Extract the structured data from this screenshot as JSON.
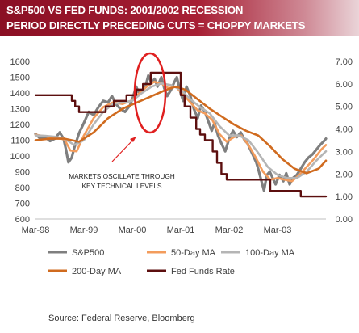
{
  "header": {
    "line1": "S&P500 VS FED FUNDS: 2001/2002 RECESSION",
    "line2": "PERIOD DIRECTLY PRECEDING CUTS = CHOPPY MARKETS"
  },
  "source": "Source:  Federal Reserve, Bloomberg",
  "annotation": {
    "line1": "MARKETS OSCILLATE THROUGH",
    "line2": "KEY TECHNICAL LEVELS"
  },
  "colors": {
    "header_start": "#8a0f24",
    "sp500": "#7f7f7f",
    "ma50": "#f39c5c",
    "ma100": "#b5b5b5",
    "ma200": "#d06b1f",
    "fed_funds": "#5c0f0f",
    "highlight": "#e02020"
  },
  "chart_data": {
    "type": "line",
    "title": "",
    "xlabel": "",
    "ylabel": "",
    "x_ticks": [
      "Mar-98",
      "Mar-99",
      "Mar-00",
      "Mar-01",
      "Mar-02",
      "Mar-03"
    ],
    "x_range": [
      1998.0,
      2004.0
    ],
    "y_left_ticks": [
      "600",
      "700",
      "800",
      "900",
      "1000",
      "1100",
      "1200",
      "1300",
      "1400",
      "1500",
      "1600"
    ],
    "y_left_range": [
      600,
      1600
    ],
    "y_right_ticks": [
      "0.00",
      "1.00",
      "2.00",
      "3.00",
      "4.00",
      "5.00",
      "6.00",
      "7.00"
    ],
    "y_right_range": [
      0,
      7
    ],
    "grid": false,
    "legend_position": "bottom",
    "series": [
      {
        "name": "S&P500",
        "axis": "left",
        "x": [
          1998.0,
          1998.1,
          1998.2,
          1998.3,
          1998.4,
          1998.5,
          1998.58,
          1998.63,
          1998.68,
          1998.75,
          1998.8,
          1998.9,
          1999.0,
          1999.1,
          1999.2,
          1999.3,
          1999.4,
          1999.5,
          1999.58,
          1999.66,
          1999.75,
          1999.85,
          1999.95,
          2000.0,
          2000.08,
          2000.15,
          2000.22,
          2000.28,
          2000.33,
          2000.4,
          2000.46,
          2000.52,
          2000.6,
          2000.66,
          2000.72,
          2000.8,
          2000.87,
          2000.92,
          2000.98,
          2001.05,
          2001.12,
          2001.2,
          2001.27,
          2001.35,
          2001.42,
          2001.5,
          2001.57,
          2001.64,
          2001.7,
          2001.77,
          2001.84,
          2001.92,
          2002.0,
          2002.08,
          2002.16,
          2002.24,
          2002.32,
          2002.38,
          2002.44,
          2002.5,
          2002.56,
          2002.6,
          2002.66,
          2002.72,
          2002.78,
          2002.84,
          2002.9,
          2002.96,
          2003.04,
          2003.12,
          2003.18,
          2003.25,
          2003.32,
          2003.4,
          2003.48,
          2003.56,
          2003.64,
          2003.72,
          2003.8,
          2003.88,
          2003.96,
          2004.0
        ],
        "values": [
          1140,
          1110,
          1120,
          1095,
          1110,
          1150,
          1110,
          1040,
          960,
          990,
          1050,
          1145,
          1210,
          1280,
          1260,
          1310,
          1350,
          1340,
          1380,
          1330,
          1300,
          1280,
          1320,
          1360,
          1440,
          1390,
          1420,
          1450,
          1510,
          1460,
          1490,
          1440,
          1500,
          1430,
          1380,
          1420,
          1470,
          1500,
          1420,
          1350,
          1440,
          1380,
          1300,
          1240,
          1320,
          1280,
          1220,
          1160,
          1210,
          1130,
          1080,
          1030,
          1110,
          1160,
          1120,
          1150,
          1100,
          1080,
          1040,
          1000,
          960,
          920,
          850,
          780,
          880,
          900,
          860,
          820,
          880,
          840,
          890,
          820,
          860,
          880,
          920,
          960,
          990,
          1010,
          1040,
          1070,
          1095,
          1110
        ]
      },
      {
        "name": "50-Day MA",
        "axis": "left",
        "x": [
          1998.0,
          1998.2,
          1998.4,
          1998.6,
          1998.72,
          1998.85,
          1999.0,
          1999.2,
          1999.4,
          1999.6,
          1999.8,
          2000.0,
          2000.15,
          2000.3,
          2000.45,
          2000.6,
          2000.75,
          2000.9,
          2001.05,
          2001.2,
          2001.35,
          2001.5,
          2001.65,
          2001.8,
          2001.95,
          2002.1,
          2002.25,
          2002.4,
          2002.55,
          2002.7,
          2002.85,
          2003.0,
          2003.15,
          2003.3,
          2003.45,
          2003.6,
          2003.75,
          2003.9,
          2004.0
        ],
        "values": [
          1135,
          1125,
          1115,
          1105,
          1035,
          1030,
          1130,
          1240,
          1310,
          1340,
          1330,
          1355,
          1400,
          1440,
          1470,
          1460,
          1430,
          1440,
          1390,
          1340,
          1290,
          1270,
          1230,
          1140,
          1090,
          1120,
          1130,
          1070,
          990,
          900,
          850,
          860,
          850,
          840,
          880,
          930,
          980,
          1040,
          1070
        ]
      },
      {
        "name": "100-Day MA",
        "axis": "left",
        "x": [
          1998.0,
          1998.2,
          1998.4,
          1998.6,
          1998.8,
          1999.0,
          1999.2,
          1999.4,
          1999.6,
          1999.8,
          2000.0,
          2000.2,
          2000.4,
          2000.6,
          2000.8,
          2001.0,
          2001.2,
          2001.4,
          2001.6,
          2001.8,
          2002.0,
          2002.2,
          2002.4,
          2002.6,
          2002.8,
          2003.0,
          2003.2,
          2003.4,
          2003.6,
          2003.8,
          2004.0
        ],
        "values": [
          1130,
          1128,
          1122,
          1110,
          1070,
          1100,
          1200,
          1280,
          1330,
          1340,
          1350,
          1400,
          1440,
          1460,
          1450,
          1420,
          1360,
          1310,
          1270,
          1190,
          1130,
          1130,
          1100,
          1020,
          930,
          880,
          860,
          860,
          900,
          970,
          1030
        ]
      },
      {
        "name": "200-Day MA",
        "axis": "left",
        "x": [
          1998.0,
          1998.3,
          1998.6,
          1998.9,
          1999.2,
          1999.5,
          1999.8,
          2000.1,
          2000.4,
          2000.7,
          2000.9,
          2001.1,
          2001.35,
          2001.6,
          2001.85,
          2002.1,
          2002.35,
          2002.6,
          2002.85,
          2003.1,
          2003.35,
          2003.6,
          2003.85,
          2004.0
        ],
        "values": [
          1100,
          1110,
          1110,
          1090,
          1150,
          1240,
          1300,
          1340,
          1380,
          1420,
          1440,
          1420,
          1360,
          1300,
          1250,
          1200,
          1160,
          1130,
          1060,
          980,
          920,
          890,
          920,
          970
        ]
      },
      {
        "name": "Fed Funds Rate",
        "axis": "right",
        "x": [
          1998.0,
          1998.75,
          1998.75,
          1998.82,
          1998.82,
          1998.9,
          1998.9,
          1999.45,
          1999.45,
          1999.62,
          1999.62,
          1999.88,
          1999.88,
          2000.08,
          2000.08,
          2000.22,
          2000.22,
          2000.38,
          2000.38,
          2001.0,
          2001.0,
          2001.08,
          2001.08,
          2001.2,
          2001.2,
          2001.32,
          2001.32,
          2001.4,
          2001.4,
          2001.5,
          2001.5,
          2001.66,
          2001.66,
          2001.75,
          2001.75,
          2001.84,
          2001.84,
          2001.95,
          2001.95,
          2002.85,
          2002.85,
          2003.48,
          2003.48,
          2004.0
        ],
        "values": [
          5.5,
          5.5,
          5.25,
          5.25,
          5.0,
          5.0,
          4.75,
          4.75,
          5.0,
          5.0,
          5.25,
          5.25,
          5.5,
          5.5,
          5.75,
          5.75,
          6.0,
          6.0,
          6.5,
          6.5,
          5.5,
          5.5,
          5.0,
          5.0,
          4.5,
          4.5,
          4.0,
          4.0,
          3.75,
          3.75,
          3.5,
          3.5,
          3.0,
          3.0,
          2.5,
          2.5,
          2.0,
          2.0,
          1.75,
          1.75,
          1.25,
          1.25,
          1.0,
          1.0
        ]
      }
    ]
  }
}
